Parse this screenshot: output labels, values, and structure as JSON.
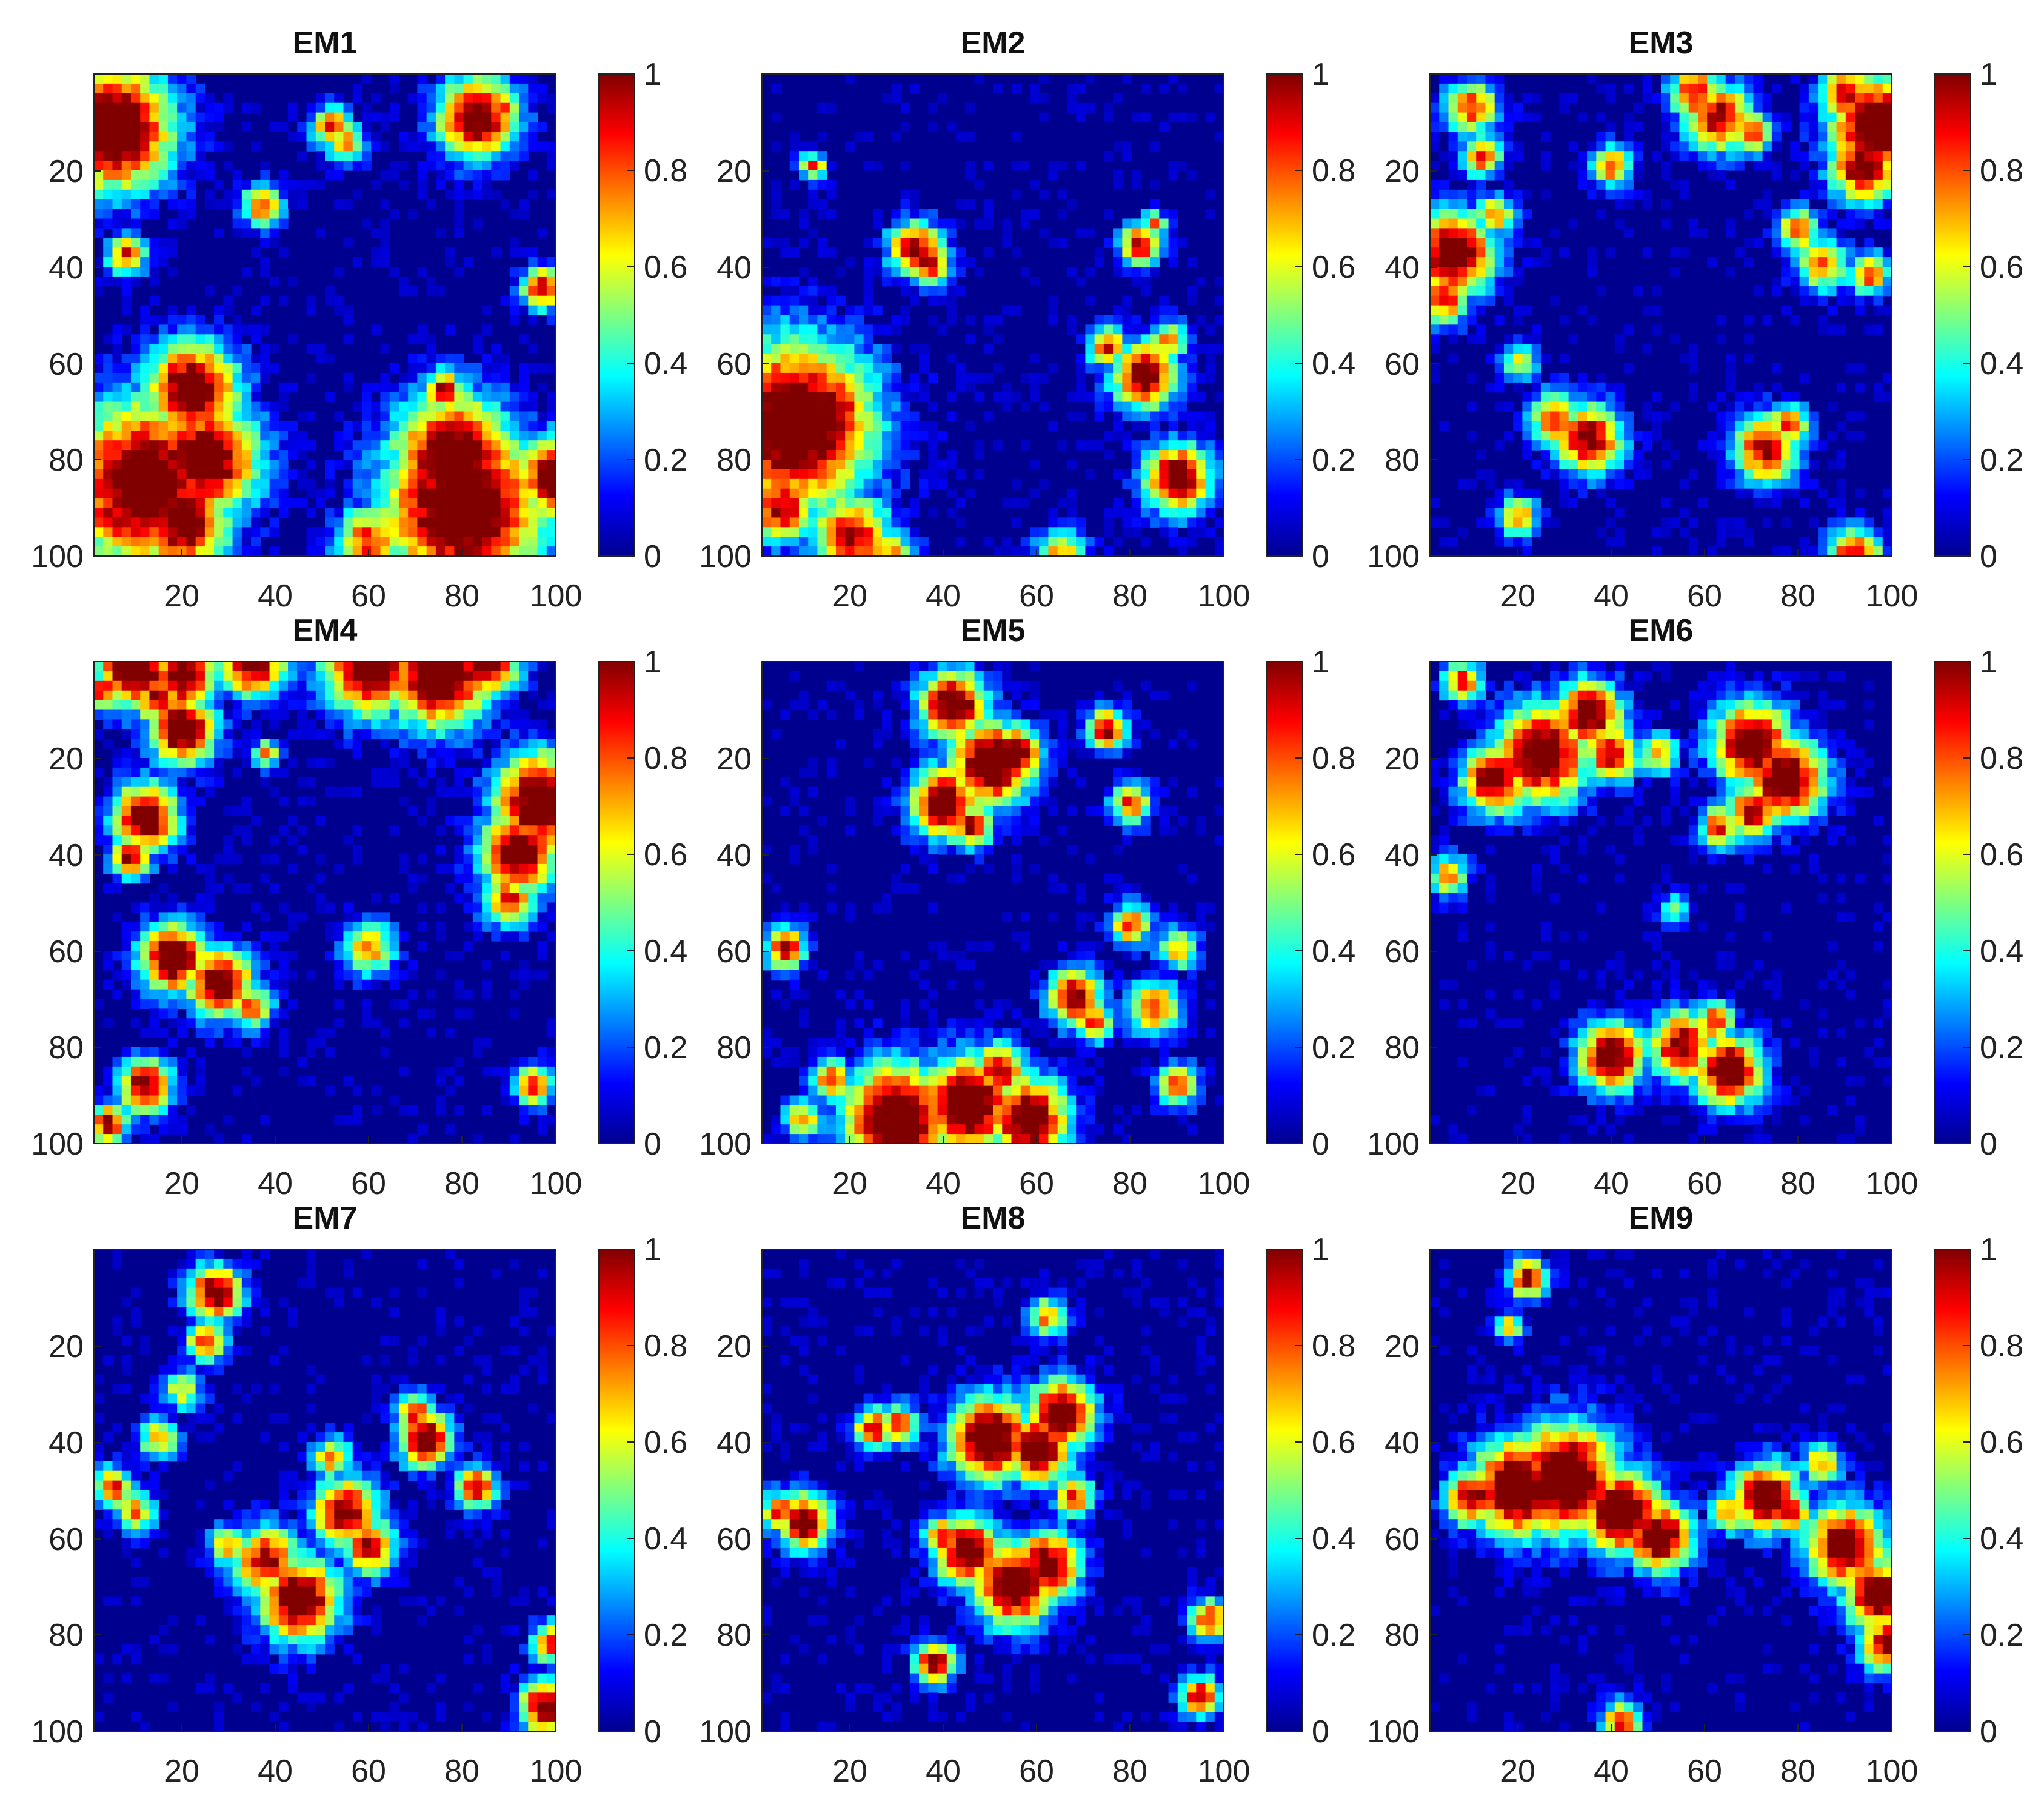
{
  "chart_data": {
    "type": "heatmap",
    "colormap": "jet",
    "grid": false,
    "shared": {
      "x_range": [
        1,
        100
      ],
      "y_range": [
        1,
        100
      ],
      "y_reversed": true,
      "x_ticks": [
        20,
        40,
        60,
        80,
        100
      ],
      "y_ticks": [
        20,
        40,
        60,
        80,
        100
      ],
      "colorbar_range": [
        0,
        1
      ],
      "colorbar_ticks": [
        0,
        0.2,
        0.4,
        0.6,
        0.8,
        1
      ]
    },
    "panels": [
      {
        "title": "EM1",
        "seed": 11,
        "blobs": [
          [
            5,
            12,
            9,
            1
          ],
          [
            100,
            84,
            6,
            0.9
          ],
          [
            12,
            85,
            12,
            0.95
          ],
          [
            22,
            66,
            7,
            0.95
          ],
          [
            25,
            80,
            8,
            0.95
          ],
          [
            20,
            93,
            7,
            0.9
          ],
          [
            5,
            92,
            5,
            0.8
          ],
          [
            80,
            90,
            12,
            1
          ],
          [
            78,
            80,
            9,
            0.95
          ],
          [
            76,
            66,
            3,
            0.8
          ],
          [
            86,
            80,
            4,
            0.7
          ],
          [
            60,
            97,
            5,
            0.7
          ],
          [
            83,
            10,
            6,
            0.9
          ],
          [
            88,
            8,
            3,
            0.7
          ],
          [
            52,
            12,
            3,
            0.7
          ],
          [
            55,
            15,
            3,
            0.6
          ],
          [
            37,
            28,
            3,
            0.7
          ],
          [
            8,
            38,
            3,
            0.7
          ],
          [
            97,
            45,
            3,
            0.8
          ]
        ]
      },
      {
        "title": "EM2",
        "seed": 23,
        "blobs": [
          [
            8,
            73,
            12,
            1
          ],
          [
            5,
            90,
            5,
            0.8
          ],
          [
            15,
            70,
            7,
            0.85
          ],
          [
            20,
            96,
            6,
            0.8
          ],
          [
            28,
            100,
            4,
            0.6
          ],
          [
            65,
            100,
            4,
            0.6
          ],
          [
            34,
            37,
            4,
            0.8
          ],
          [
            37,
            40,
            3,
            0.8
          ],
          [
            82,
            36,
            3,
            0.8
          ],
          [
            85,
            32,
            2,
            0.6
          ],
          [
            83,
            63,
            5,
            0.85
          ],
          [
            75,
            57,
            3,
            0.7
          ],
          [
            88,
            56,
            3,
            0.6
          ],
          [
            90,
            84,
            5,
            0.9
          ],
          [
            12,
            20,
            2,
            0.7
          ],
          [
            30,
            35,
            2,
            0.5
          ]
        ]
      },
      {
        "title": "EM3",
        "seed": 37,
        "blobs": [
          [
            97,
            12,
            7,
            1
          ],
          [
            94,
            20,
            5,
            0.9
          ],
          [
            90,
            5,
            4,
            0.8
          ],
          [
            63,
            10,
            5,
            0.8
          ],
          [
            58,
            5,
            4,
            0.75
          ],
          [
            70,
            13,
            3,
            0.7
          ],
          [
            6,
            38,
            6,
            0.95
          ],
          [
            4,
            47,
            4,
            0.7
          ],
          [
            10,
            8,
            4,
            0.7
          ],
          [
            12,
            18,
            3,
            0.7
          ],
          [
            15,
            30,
            3,
            0.6
          ],
          [
            35,
            76,
            5,
            0.85
          ],
          [
            28,
            72,
            4,
            0.7
          ],
          [
            20,
            60,
            3,
            0.5
          ],
          [
            73,
            78,
            5,
            0.8
          ],
          [
            78,
            73,
            3,
            0.7
          ],
          [
            92,
            100,
            4,
            0.8
          ],
          [
            20,
            92,
            3,
            0.6
          ],
          [
            40,
            20,
            3,
            0.7
          ],
          [
            80,
            33,
            3,
            0.7
          ],
          [
            85,
            40,
            4,
            0.6
          ],
          [
            95,
            42,
            3,
            0.7
          ]
        ]
      },
      {
        "title": "EM4",
        "seed": 41,
        "blobs": [
          [
            10,
            2,
            6,
            0.95
          ],
          [
            20,
            4,
            5,
            0.9
          ],
          [
            35,
            1,
            5,
            0.9
          ],
          [
            60,
            2,
            7,
            0.95
          ],
          [
            75,
            3,
            8,
            1
          ],
          [
            85,
            1,
            5,
            0.9
          ],
          [
            20,
            15,
            5,
            0.95
          ],
          [
            15,
            8,
            4,
            0.8
          ],
          [
            97,
            30,
            7,
            1
          ],
          [
            92,
            40,
            6,
            0.9
          ],
          [
            90,
            50,
            4,
            0.7
          ],
          [
            12,
            33,
            5,
            0.9
          ],
          [
            9,
            41,
            3,
            0.8
          ],
          [
            18,
            62,
            5,
            0.95
          ],
          [
            28,
            67,
            5,
            0.9
          ],
          [
            35,
            72,
            3,
            0.7
          ],
          [
            12,
            88,
            4,
            0.85
          ],
          [
            4,
            96,
            3,
            0.8
          ],
          [
            95,
            88,
            3,
            0.7
          ],
          [
            60,
            60,
            4,
            0.6
          ],
          [
            38,
            20,
            2,
            0.6
          ],
          [
            3,
            7,
            3,
            0.7
          ]
        ]
      },
      {
        "title": "EM5",
        "seed": 53,
        "blobs": [
          [
            50,
            22,
            6,
            1
          ],
          [
            55,
            20,
            4,
            0.95
          ],
          [
            40,
            30,
            5,
            0.95
          ],
          [
            46,
            35,
            3,
            0.8
          ],
          [
            42,
            10,
            5,
            0.95
          ],
          [
            30,
            95,
            8,
            1
          ],
          [
            45,
            92,
            7,
            1
          ],
          [
            58,
            95,
            6,
            0.95
          ],
          [
            52,
            85,
            4,
            0.8
          ],
          [
            68,
            70,
            4,
            0.85
          ],
          [
            72,
            75,
            3,
            0.7
          ],
          [
            85,
            72,
            4,
            0.7
          ],
          [
            90,
            88,
            3,
            0.7
          ],
          [
            6,
            60,
            3,
            0.8
          ],
          [
            80,
            55,
            3,
            0.7
          ],
          [
            75,
            15,
            3,
            0.8
          ],
          [
            80,
            30,
            3,
            0.7
          ],
          [
            16,
            87,
            3,
            0.7
          ],
          [
            10,
            95,
            3,
            0.6
          ],
          [
            90,
            60,
            3,
            0.6
          ]
        ]
      },
      {
        "title": "EM6",
        "seed": 67,
        "blobs": [
          [
            25,
            20,
            7,
            0.95
          ],
          [
            35,
            12,
            5,
            0.9
          ],
          [
            15,
            25,
            5,
            0.9
          ],
          [
            40,
            20,
            4,
            0.8
          ],
          [
            70,
            18,
            6,
            0.95
          ],
          [
            77,
            25,
            6,
            0.95
          ],
          [
            70,
            32,
            4,
            0.8
          ],
          [
            63,
            35,
            3,
            0.7
          ],
          [
            40,
            82,
            5,
            0.9
          ],
          [
            55,
            80,
            5,
            0.85
          ],
          [
            65,
            85,
            5,
            0.95
          ],
          [
            62,
            75,
            3,
            0.7
          ],
          [
            50,
            20,
            3,
            0.6
          ],
          [
            5,
            45,
            3,
            0.6
          ],
          [
            53,
            52,
            2,
            0.5
          ],
          [
            8,
            5,
            3,
            0.7
          ]
        ]
      },
      {
        "title": "EM7",
        "seed": 79,
        "blobs": [
          [
            27,
            10,
            4,
            0.9
          ],
          [
            25,
            20,
            3,
            0.7
          ],
          [
            45,
            73,
            6,
            0.95
          ],
          [
            38,
            65,
            5,
            0.8
          ],
          [
            55,
            55,
            5,
            0.85
          ],
          [
            60,
            62,
            4,
            0.8
          ],
          [
            72,
            40,
            4,
            0.9
          ],
          [
            70,
            35,
            3,
            0.7
          ],
          [
            83,
            50,
            3,
            0.8
          ],
          [
            98,
            95,
            4,
            0.9
          ],
          [
            99,
            82,
            3,
            0.7
          ],
          [
            5,
            50,
            3,
            0.7
          ],
          [
            10,
            55,
            3,
            0.6
          ],
          [
            15,
            40,
            3,
            0.6
          ],
          [
            30,
            62,
            3,
            0.6
          ],
          [
            20,
            30,
            3,
            0.5
          ],
          [
            52,
            44,
            3,
            0.6
          ]
        ]
      },
      {
        "title": "EM8",
        "seed": 97,
        "blobs": [
          [
            50,
            40,
            6,
            1
          ],
          [
            60,
            42,
            5,
            0.95
          ],
          [
            65,
            35,
            5,
            0.95
          ],
          [
            55,
            70,
            6,
            0.95
          ],
          [
            62,
            66,
            5,
            0.9
          ],
          [
            45,
            63,
            5,
            0.9
          ],
          [
            40,
            60,
            3,
            0.7
          ],
          [
            68,
            52,
            3,
            0.7
          ],
          [
            10,
            57,
            4,
            0.9
          ],
          [
            5,
            55,
            3,
            0.7
          ],
          [
            25,
            38,
            3,
            0.8
          ],
          [
            30,
            37,
            3,
            0.7
          ],
          [
            38,
            86,
            3,
            0.85
          ],
          [
            95,
            93,
            3,
            0.8
          ],
          [
            97,
            77,
            3,
            0.7
          ],
          [
            62,
            15,
            3,
            0.6
          ]
        ]
      },
      {
        "title": "EM9",
        "seed": 109,
        "blobs": [
          [
            20,
            50,
            7,
            1
          ],
          [
            30,
            48,
            8,
            1
          ],
          [
            42,
            55,
            6,
            1
          ],
          [
            50,
            60,
            5,
            0.95
          ],
          [
            10,
            52,
            4,
            0.85
          ],
          [
            73,
            52,
            5,
            0.95
          ],
          [
            78,
            55,
            3,
            0.8
          ],
          [
            90,
            62,
            6,
            0.9
          ],
          [
            97,
            72,
            5,
            0.95
          ],
          [
            99,
            82,
            4,
            0.85
          ],
          [
            65,
            55,
            3,
            0.6
          ],
          [
            22,
            7,
            3,
            0.8
          ],
          [
            42,
            98,
            3,
            0.7
          ],
          [
            18,
            17,
            2,
            0.6
          ],
          [
            85,
            45,
            3,
            0.6
          ]
        ]
      }
    ]
  }
}
